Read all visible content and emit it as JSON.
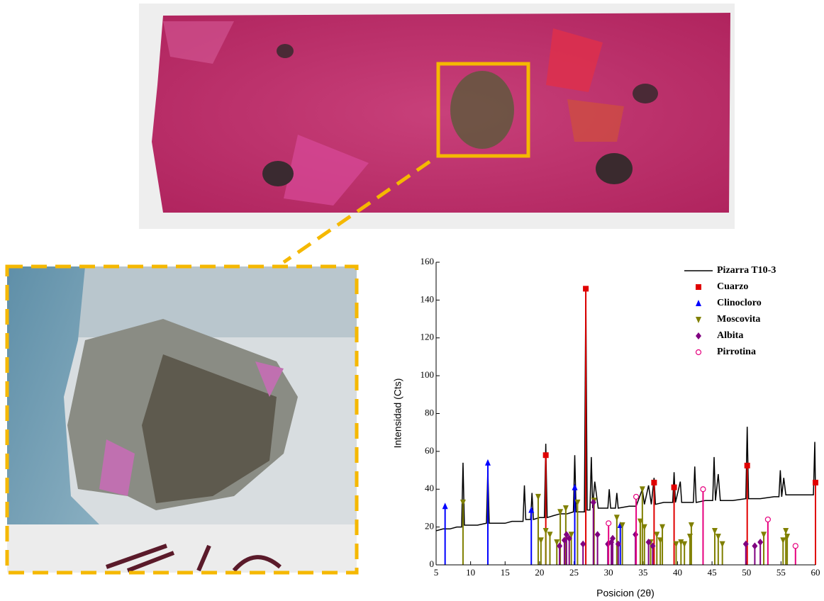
{
  "chart_data": {
    "type": "line",
    "xlabel": "Posicion (2θ)",
    "ylabel": "Intensidad (Cts)",
    "xlim": [
      5,
      60
    ],
    "ylim": [
      0,
      160
    ],
    "xticks": [
      5,
      10,
      15,
      20,
      25,
      30,
      35,
      40,
      45,
      50,
      55,
      60
    ],
    "yticks": [
      0,
      20,
      40,
      60,
      80,
      100,
      120,
      140,
      160
    ],
    "legend": "upper right",
    "series": [
      {
        "name": "Pizarra T10-3",
        "color": "#000000",
        "style": "line",
        "x": [
          5,
          6,
          7,
          8,
          8.7,
          8.9,
          9.1,
          10,
          11,
          12.3,
          12.5,
          12.7,
          14,
          15,
          16,
          17.6,
          17.8,
          18,
          18.7,
          18.9,
          19.1,
          20,
          20.7,
          20.9,
          21.1,
          22,
          23,
          24,
          24.9,
          25.1,
          25.3,
          26,
          26.5,
          26.7,
          26.9,
          27.3,
          27.5,
          27.7,
          28,
          28.5,
          29.9,
          30.1,
          30.3,
          31,
          31.2,
          31.4,
          33,
          34,
          34.9,
          35.2,
          35.8,
          36.2,
          36.6,
          36.8,
          38,
          39.3,
          39.5,
          39.7,
          40.4,
          40.6,
          42,
          42.3,
          42.5,
          42.7,
          44,
          45.1,
          45.3,
          45.5,
          45.9,
          46.2,
          48,
          49.9,
          50.1,
          50.3,
          52,
          54,
          54.7,
          54.9,
          55.1,
          55.4,
          55.7,
          57,
          58,
          59,
          59.7,
          59.9,
          60
        ],
        "values": [
          18,
          19,
          19,
          20,
          20,
          54,
          21,
          21,
          21,
          22,
          50,
          22,
          22,
          22,
          23,
          23,
          42,
          24,
          24,
          38,
          24,
          25,
          25,
          64,
          25,
          26,
          27,
          27,
          28,
          58,
          28,
          28,
          28,
          146,
          29,
          29,
          57,
          30,
          44,
          30,
          30,
          40,
          30,
          30,
          38,
          30,
          31,
          31,
          40,
          32,
          42,
          32,
          46,
          32,
          33,
          33,
          49,
          33,
          44,
          33,
          33,
          33,
          52,
          33,
          34,
          34,
          57,
          34,
          48,
          34,
          34,
          35,
          73,
          35,
          35,
          36,
          36,
          50,
          36,
          46,
          37,
          37,
          37,
          37,
          37,
          65,
          38
        ]
      },
      {
        "name": "Cuarzo",
        "color": "#e00000",
        "style": "stick",
        "marker": "square",
        "x": [
          20.9,
          26.7,
          36.6,
          39.5,
          50.1,
          60
        ],
        "values": [
          58,
          146,
          43.5,
          41,
          52.5,
          43.5
        ]
      },
      {
        "name": "Clinocloro",
        "color": "#0000ff",
        "style": "stick",
        "marker": "triangle-up",
        "x": [
          6.3,
          12.5,
          18.8,
          25.1,
          31.7
        ],
        "values": [
          31,
          54,
          29,
          41,
          21
        ]
      },
      {
        "name": "Moscovita",
        "color": "#808000",
        "style": "stick",
        "marker": "triangle-down",
        "x": [
          8.9,
          19.8,
          20.2,
          20.9,
          21.5,
          22.5,
          23.0,
          23.8,
          24.6,
          25.5,
          27.9,
          31.2,
          32.0,
          34.6,
          34.9,
          35.2,
          36.1,
          37.0,
          37.5,
          37.8,
          39.8,
          40.5,
          41.0,
          41.8,
          42.0,
          45.4,
          45.9,
          46.5,
          52.5,
          55.3,
          55.7,
          55.9
        ],
        "values": [
          33,
          36,
          13,
          18,
          16,
          12,
          28,
          30,
          16,
          33,
          34,
          25,
          21,
          23,
          40,
          20,
          12,
          16,
          13,
          20,
          11,
          12,
          11,
          15,
          21,
          18,
          15,
          11,
          16,
          13,
          18,
          15
        ]
      },
      {
        "name": "Albita",
        "color": "#800080",
        "style": "stick",
        "marker": "diamond",
        "x": [
          22.9,
          23.6,
          23.9,
          24.3,
          26.3,
          27.8,
          28.4,
          29.9,
          30.4,
          30.6,
          31.4,
          33.9,
          35.8,
          36.4,
          49.9,
          51.2,
          52.0
        ],
        "values": [
          10,
          13,
          16,
          14,
          11,
          33,
          16,
          11,
          12,
          14,
          11,
          16,
          12,
          10,
          11,
          10,
          12
        ]
      },
      {
        "name": "Pirrotina",
        "color": "#e6007e",
        "style": "stick",
        "marker": "circle-open",
        "x": [
          30.0,
          34.0,
          43.7,
          53.1,
          57.1
        ],
        "values": [
          22,
          36,
          40,
          24,
          10
        ]
      }
    ]
  }
}
